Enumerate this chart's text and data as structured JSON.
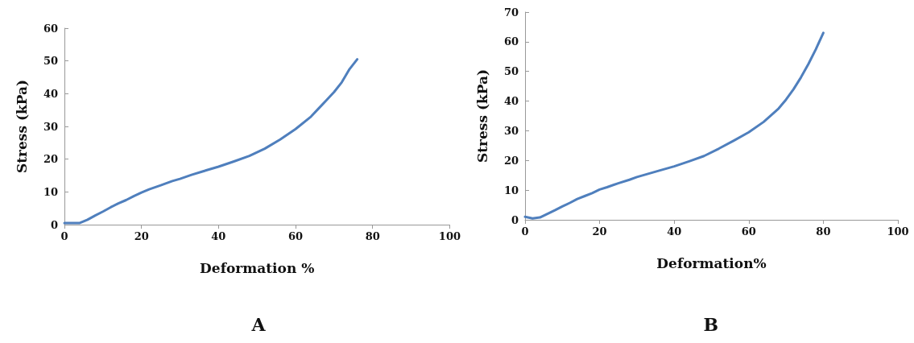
{
  "chart_data": [
    {
      "type": "line",
      "xlabel": "Deformation %",
      "ylabel": "Stress (kPa)",
      "annotations": [
        "A"
      ],
      "grid": false,
      "marker": "none",
      "line_style": "solid",
      "xlim": [
        0,
        100
      ],
      "xticks": [
        0,
        20,
        40,
        60,
        80,
        100
      ],
      "ylim": [
        0,
        60
      ],
      "yticks": [
        0,
        10,
        20,
        30,
        40,
        50,
        60
      ],
      "series": [
        {
          "color": "#4f7fbd",
          "x": [
            0,
            2,
            4,
            6,
            8,
            10,
            12,
            14,
            16,
            18,
            20,
            22,
            25,
            28,
            30,
            33,
            36,
            40,
            44,
            48,
            52,
            56,
            60,
            64,
            66,
            68,
            70,
            72,
            74,
            76
          ],
          "values": [
            0.5,
            0.5,
            0.5,
            1.5,
            2.8,
            4,
            5.3,
            6.5,
            7.5,
            8.7,
            9.8,
            10.8,
            12,
            13.3,
            14,
            15.2,
            16.3,
            17.7,
            19.3,
            21,
            23.2,
            26,
            29.2,
            33,
            35.5,
            38,
            40.5,
            43.5,
            47.5,
            50.5
          ]
        }
      ]
    },
    {
      "type": "line",
      "xlabel": "Deformation%",
      "ylabel": "Stress (kPa)",
      "annotations": [
        "B"
      ],
      "grid": false,
      "marker": "none",
      "line_style": "solid",
      "xlim": [
        0,
        100
      ],
      "xticks": [
        0,
        20,
        40,
        60,
        80,
        100
      ],
      "ylim": [
        0,
        70
      ],
      "yticks": [
        0,
        10,
        20,
        30,
        40,
        50,
        60,
        70
      ],
      "series": [
        {
          "color": "#4f7fbd",
          "x": [
            0,
            2,
            4,
            6,
            8,
            10,
            12,
            14,
            16,
            18,
            20,
            22,
            25,
            28,
            30,
            33,
            36,
            40,
            44,
            48,
            52,
            56,
            60,
            64,
            68,
            70,
            72,
            74,
            76,
            78,
            80
          ],
          "values": [
            1,
            0.5,
            0.8,
            2,
            3.2,
            4.5,
            5.7,
            7,
            8,
            9,
            10.2,
            11,
            12.3,
            13.5,
            14.4,
            15.5,
            16.6,
            18,
            19.7,
            21.5,
            24,
            26.7,
            29.5,
            33,
            37.5,
            40.5,
            44,
            48,
            52.5,
            57.5,
            63
          ]
        }
      ]
    }
  ]
}
